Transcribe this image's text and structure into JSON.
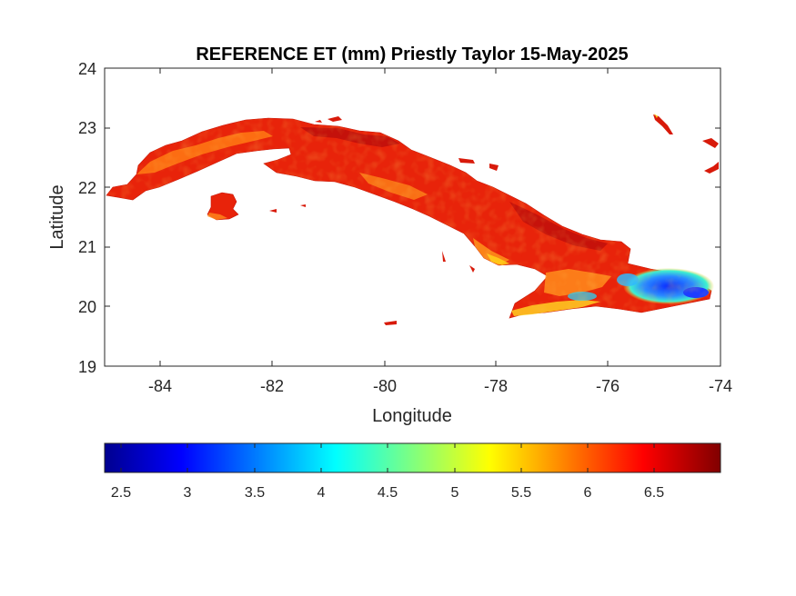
{
  "map": {
    "title": "REFERENCE ET (mm) Priestly Taylor 15-May-2025",
    "xlabel": "Longitude",
    "ylabel": "Latitude",
    "x_ticks": [
      "-84",
      "-82",
      "-80",
      "-78",
      "-76",
      "-74"
    ],
    "y_ticks": [
      "24",
      "23",
      "22",
      "21",
      "20",
      "19"
    ],
    "xlim": [
      -85,
      -74
    ],
    "ylim": [
      19,
      24
    ],
    "region": "Cuba",
    "grid": false
  },
  "colorbar": {
    "colormap": "jet",
    "ticks": [
      "2.5",
      "3",
      "3.5",
      "4",
      "4.5",
      "5",
      "5.5",
      "6",
      "6.5"
    ],
    "range": [
      2.35,
      6.95
    ],
    "orientation": "horizontal",
    "placement": "below-map"
  },
  "colors": {
    "land_dominant": "#e8230a",
    "land_dark": "#b80c0c",
    "land_high": "#ff7a14",
    "low_et": "#1f5fff",
    "axis": "#262626"
  }
}
